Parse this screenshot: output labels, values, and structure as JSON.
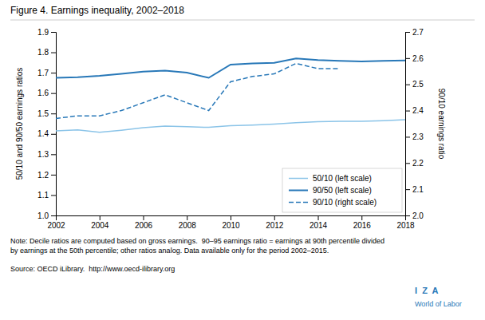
{
  "chart_data": {
    "type": "line",
    "title": "Figure 4. Earnings inequality, 2002–2018",
    "y_label": "50/10 and 90/50 earnings ratios",
    "y2_label": "90/10 earnings ratio",
    "x": [
      2002,
      2003,
      2004,
      2005,
      2006,
      2007,
      2008,
      2009,
      2010,
      2011,
      2012,
      2013,
      2014,
      2015,
      2016,
      2017,
      2018
    ],
    "xlim": [
      2002,
      2018
    ],
    "xticks": [
      2002,
      2004,
      2006,
      2008,
      2010,
      2012,
      2014,
      2016,
      2018
    ],
    "ylim": [
      1.0,
      1.9
    ],
    "yticks": [
      {
        "value": 1.0,
        "label": "1.0"
      },
      1.1,
      1.2,
      1.3,
      1.4,
      1.5,
      1.6,
      1.7,
      1.8,
      1.9
    ],
    "y2lim": [
      2.0,
      2.7
    ],
    "y2ticks": [
      {
        "value": 2.0,
        "label": "2.0"
      },
      2.1,
      2.2,
      2.3,
      2.4,
      2.5,
      2.6,
      2.7
    ],
    "series": [
      {
        "name": "50/10 (left scale)",
        "color": "#8bc4e8",
        "line_style": "solid",
        "values": [
          1.415,
          1.42,
          1.408,
          1.418,
          1.43,
          1.438,
          1.435,
          1.432,
          1.44,
          1.443,
          1.448,
          1.455,
          1.46,
          1.462,
          1.462,
          1.465,
          1.47
        ]
      },
      {
        "name": "90/50 (left scale)",
        "color": "#2878b8",
        "line_style": "solid",
        "values": [
          1.675,
          1.678,
          1.685,
          1.695,
          1.705,
          1.71,
          1.7,
          1.675,
          1.74,
          1.745,
          1.748,
          1.77,
          1.762,
          1.758,
          1.755,
          1.758,
          1.76
        ]
      },
      {
        "name": "90/10 (right scale)",
        "color": "#2878b8",
        "line_style": "dashed",
        "axis": "y2",
        "values": [
          2.37,
          2.38,
          2.38,
          2.4,
          2.43,
          2.46,
          2.43,
          2.4,
          2.51,
          2.53,
          2.54,
          2.58,
          2.56,
          2.56,
          null,
          null,
          null
        ]
      }
    ],
    "legend": "lower right",
    "grid": false,
    "annotations": [
      "Note: Decile ratios are computed based on gross earnings.  90–95 earnings ratio = earnings at 90th percentile divided\nby earnings at the 50th percentile; other ratios analog. Data available only for the period 2002–2015.",
      "Source: OECD iLibrary.  http://www.oecd-ilibrary.org",
      "I  Z  A",
      "World of Labor"
    ]
  }
}
